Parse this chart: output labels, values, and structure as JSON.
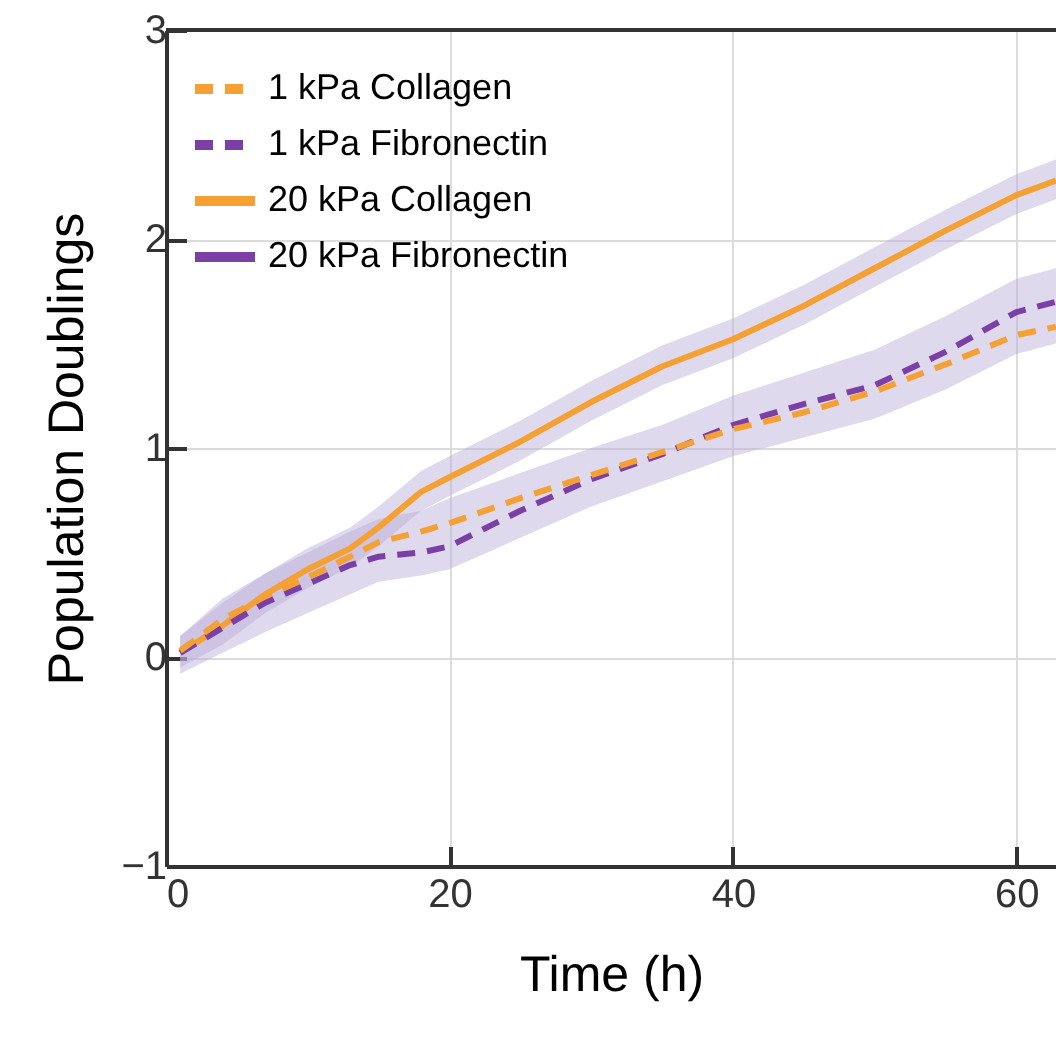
{
  "chart_data": {
    "type": "line",
    "xlabel": "Time (h)",
    "ylabel": "Population Doublings",
    "x": [
      1,
      4,
      7,
      10,
      13,
      15,
      18,
      20,
      25,
      30,
      35,
      40,
      45,
      50,
      55,
      60,
      62.8
    ],
    "series": [
      {
        "name": "1 kPa Collagen",
        "color": "#f5a033",
        "line_style": "dashed",
        "values": [
          0.03,
          0.18,
          0.29,
          0.38,
          0.48,
          0.55,
          0.6,
          0.64,
          0.76,
          0.87,
          0.98,
          1.09,
          1.17,
          1.27,
          1.4,
          1.54,
          1.58
        ]
      },
      {
        "name": "1 kPa Fibronectin",
        "color": "#7b3fa6",
        "line_style": "dashed",
        "values": [
          0.02,
          0.14,
          0.26,
          0.35,
          0.44,
          0.48,
          0.5,
          0.53,
          0.7,
          0.85,
          0.97,
          1.11,
          1.21,
          1.3,
          1.46,
          1.65,
          1.7
        ],
        "lower": [
          -0.08,
          0.02,
          0.12,
          0.21,
          0.3,
          0.36,
          0.39,
          0.42,
          0.57,
          0.72,
          0.84,
          0.96,
          1.05,
          1.14,
          1.28,
          1.45,
          1.5
        ],
        "upper": [
          0.1,
          0.28,
          0.4,
          0.5,
          0.6,
          0.66,
          0.7,
          0.76,
          0.88,
          1.0,
          1.11,
          1.25,
          1.36,
          1.47,
          1.63,
          1.81,
          1.86
        ]
      },
      {
        "name": "20 kPa Collagen",
        "color": "#f5a033",
        "line_style": "solid",
        "values": [
          0.02,
          0.15,
          0.3,
          0.42,
          0.52,
          0.62,
          0.79,
          0.86,
          1.03,
          1.22,
          1.39,
          1.52,
          1.68,
          1.86,
          2.04,
          2.21,
          2.28
        ]
      },
      {
        "name": "20 kPa Fibronectin",
        "color": "#7b3fa6",
        "line_style": "solid",
        "values": [
          null,
          null,
          null,
          null,
          null,
          null,
          null,
          null,
          null,
          null,
          null,
          null,
          null,
          null,
          null,
          null,
          null
        ],
        "lower": [
          -0.05,
          0.06,
          0.21,
          0.33,
          0.43,
          0.53,
          0.7,
          0.77,
          0.94,
          1.13,
          1.3,
          1.43,
          1.59,
          1.77,
          1.95,
          2.12,
          2.19
        ],
        "upper": [
          0.1,
          0.26,
          0.4,
          0.52,
          0.62,
          0.72,
          0.89,
          0.96,
          1.13,
          1.32,
          1.49,
          1.62,
          1.78,
          1.96,
          2.14,
          2.31,
          2.38
        ]
      }
    ],
    "xlim": [
      0,
      62.8
    ],
    "xticks": [
      0,
      20,
      40,
      60
    ],
    "ylim": [
      -1,
      3
    ],
    "yticks": [
      -1,
      0,
      1,
      2,
      3
    ],
    "grid": true,
    "legend": "top left"
  }
}
